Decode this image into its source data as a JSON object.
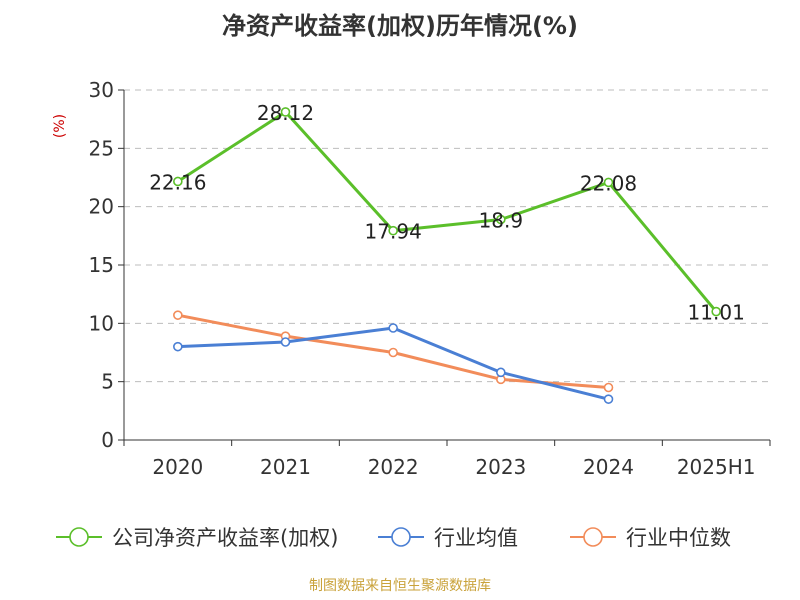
{
  "chart_data": {
    "type": "line",
    "title": "净资产收益率(加权)历年情况(%)",
    "ylabel": "(%)",
    "categories": [
      "2020",
      "2021",
      "2022",
      "2023",
      "2024",
      "2025H1"
    ],
    "ylim": [
      0,
      30
    ],
    "yticks": [
      "0",
      "5",
      "10",
      "15",
      "20",
      "25",
      "30"
    ],
    "grid": "horizontal-dashed",
    "legend_position": "bottom",
    "series": [
      {
        "name": "公司净资产收益率(加权)",
        "color": "#5bbf2a",
        "values": [
          22.16,
          28.12,
          17.94,
          18.9,
          22.08,
          11.01
        ],
        "labels": [
          "22.16",
          "28.12",
          "17.94",
          "18.9",
          "22.08",
          "11.01"
        ]
      },
      {
        "name": "行业均值",
        "color": "#4a7fd4",
        "values": [
          8.0,
          8.4,
          9.6,
          5.8,
          3.5,
          null
        ]
      },
      {
        "name": "行业中位数",
        "color": "#f28c5a",
        "values": [
          10.7,
          8.9,
          7.5,
          5.2,
          4.5,
          null
        ]
      }
    ],
    "source": "制图数据来自恒生聚源数据库"
  },
  "colors": {
    "title": "#333333",
    "axis": "#333333",
    "grid": "#bdbdbd",
    "ylabel": "#cc0000",
    "source": "#c9a23a"
  }
}
